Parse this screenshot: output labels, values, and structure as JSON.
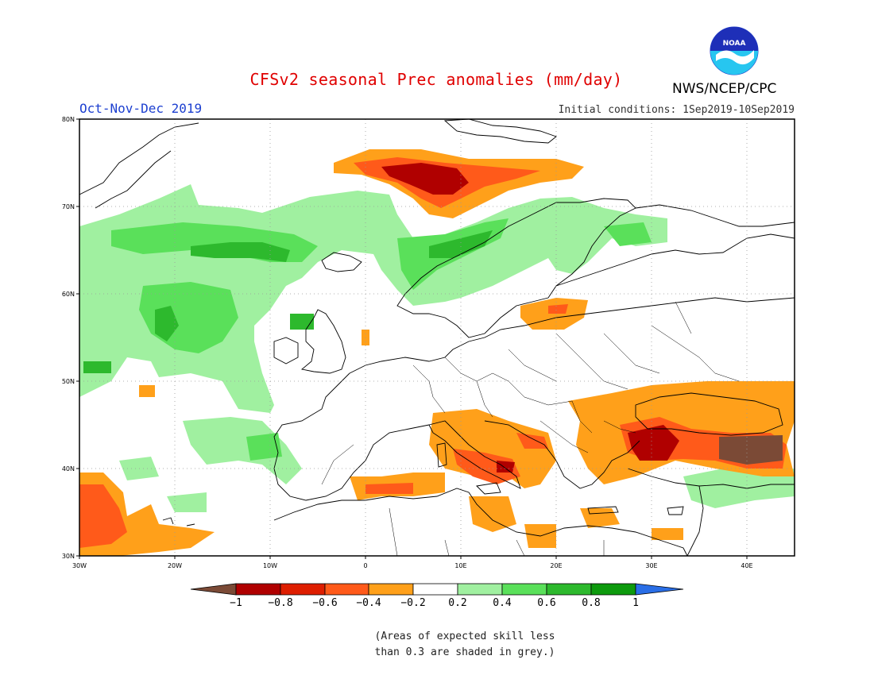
{
  "header": {
    "title": "CFSv2 seasonal Prec anomalies (mm/day)",
    "period": "Oct-Nov-Dec 2019",
    "initial_conditions": "Initial conditions: 1Sep2019-10Sep2019",
    "agency": "NWS/NCEP/CPC",
    "logo_text": "NOAA"
  },
  "map": {
    "lat_labels": [
      "80N",
      "70N",
      "60N",
      "50N",
      "40N",
      "30N"
    ],
    "lon_labels": [
      "30W",
      "20W",
      "10W",
      "0",
      "10E",
      "20E",
      "30E",
      "40E"
    ],
    "colors": {
      "below_-1": "#7b4a36",
      "-1_-0.8": "#b00000",
      "-0.8_-0.6": "#de1e00",
      "-0.6_-0.4": "#ff5a1a",
      "-0.4_-0.2": "#ffa01a",
      "-0.2_0.2": "#ffffff",
      "0.2_0.4": "#a0f0a0",
      "0.4_0.6": "#5ae05a",
      "0.6_0.8": "#2db92d",
      "0.8_1": "#0d9a0d",
      "above_1": "#2a6ee6"
    }
  },
  "colorbar": {
    "labels": [
      "−1",
      "−0.8",
      "−0.6",
      "−0.4",
      "−0.2",
      "0.2",
      "0.4",
      "0.6",
      "0.8",
      "1"
    ]
  },
  "footnote": {
    "line1": "(Areas of expected skill less",
    "line2": "than 0.3 are shaded in grey.)"
  }
}
